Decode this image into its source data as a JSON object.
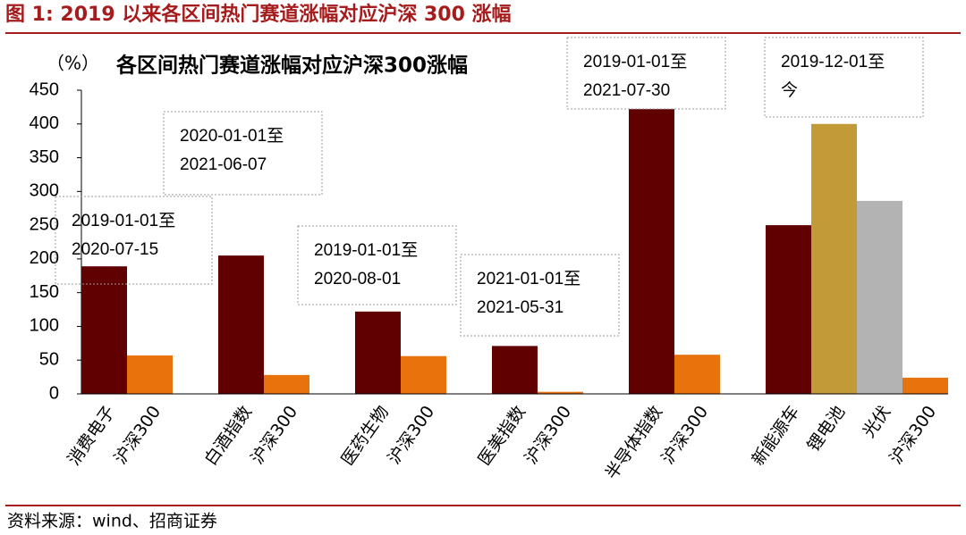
{
  "chart_data": {
    "type": "bar",
    "figure_title": "图 1:  2019 以来各区间热门赛道涨幅对应沪深 300 涨幅",
    "title": "各区间热门赛道涨幅对应沪深300涨幅",
    "y_unit": "（%）",
    "source": "资料来源：wind、招商证券",
    "categories": [
      "消费电子",
      "沪深300",
      null,
      "白酒指数",
      "沪深300",
      null,
      "医药生物",
      "沪深300",
      null,
      "医美指数",
      "沪深300",
      null,
      "半导体指数",
      "沪深300",
      null,
      "新能源车",
      "锂电池",
      "光伏",
      "沪深300"
    ],
    "values": [
      189,
      57,
      null,
      205,
      28,
      null,
      122,
      56,
      null,
      71,
      3,
      null,
      422,
      58,
      null,
      250,
      400,
      286,
      24
    ],
    "colors": [
      "#600000",
      "#e8720c",
      null,
      "#600000",
      "#e8720c",
      null,
      "#600000",
      "#e8720c",
      null,
      "#600000",
      "#e8720c",
      null,
      "#600000",
      "#e8720c",
      null,
      "#600000",
      "#c29b38",
      "#b3b3b3",
      "#e8720c"
    ],
    "ylim": [
      0,
      450
    ],
    "yticks": [
      0,
      50,
      100,
      150,
      200,
      250,
      300,
      350,
      400,
      450
    ],
    "annotations": [
      [
        "2019-01-01至",
        "2020-07-15"
      ],
      [
        "2020-01-01至",
        "2021-06-07"
      ],
      [
        "2019-01-01至",
        "2020-08-01"
      ],
      [
        "2021-01-01至",
        "2021-05-31"
      ],
      [
        "2019-01-01至",
        "2021-07-30"
      ],
      [
        "2019-12-01至",
        "今"
      ]
    ]
  }
}
